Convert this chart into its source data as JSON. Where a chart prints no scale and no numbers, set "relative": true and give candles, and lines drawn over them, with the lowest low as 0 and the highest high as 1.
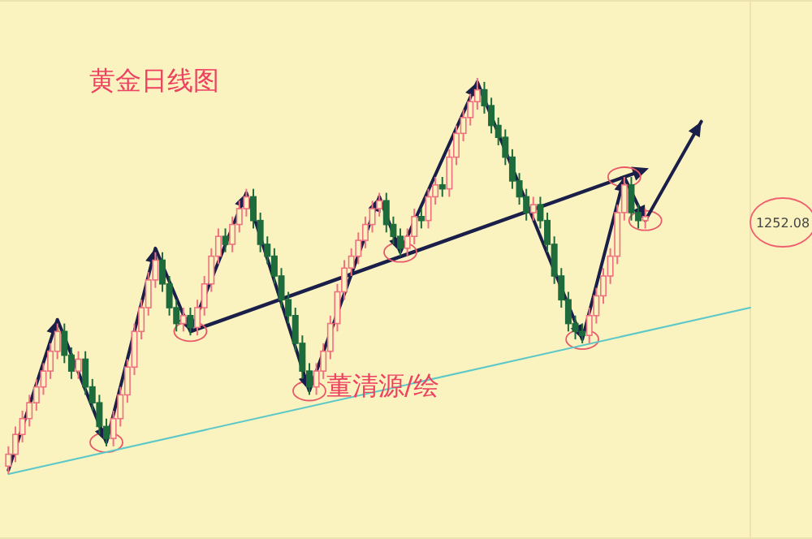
{
  "chart_data": {
    "type": "candlestick",
    "title": "黄金日线图",
    "relative": true,
    "categories": [
      null,
      null,
      null,
      null,
      null,
      null,
      null,
      null,
      null,
      null,
      null,
      null,
      null,
      null,
      null,
      null,
      null,
      null,
      null,
      null,
      null,
      null,
      null,
      null,
      null,
      null,
      null,
      null,
      null,
      null,
      null,
      null,
      null,
      null,
      null,
      null,
      null,
      null,
      null,
      null,
      null,
      null,
      null,
      null,
      null,
      null,
      null,
      null,
      null,
      null,
      null,
      null,
      null,
      null,
      null,
      null,
      null,
      null,
      null,
      null,
      null,
      null,
      null,
      null,
      null,
      null,
      null,
      null,
      null,
      null,
      null,
      null,
      null,
      null,
      null,
      null,
      null,
      null,
      null,
      null,
      null,
      null,
      null,
      null,
      null,
      null,
      null,
      null,
      null,
      null,
      null,
      null,
      null,
      null,
      null,
      null,
      null,
      null,
      null,
      null,
      null,
      null,
      null,
      null,
      null,
      null,
      null
    ],
    "ohlc": [
      [
        0.02,
        0.07,
        0.0,
        0.05
      ],
      [
        0.05,
        0.12,
        0.03,
        0.1
      ],
      [
        0.1,
        0.16,
        0.08,
        0.14
      ],
      [
        0.14,
        0.2,
        0.12,
        0.18
      ],
      [
        0.18,
        0.24,
        0.16,
        0.22
      ],
      [
        0.22,
        0.28,
        0.2,
        0.26
      ],
      [
        0.26,
        0.33,
        0.24,
        0.31
      ],
      [
        0.31,
        0.38,
        0.29,
        0.36
      ],
      [
        0.36,
        0.38,
        0.28,
        0.3
      ],
      [
        0.3,
        0.32,
        0.24,
        0.26
      ],
      [
        0.26,
        0.31,
        0.24,
        0.29
      ],
      [
        0.29,
        0.31,
        0.2,
        0.22
      ],
      [
        0.22,
        0.24,
        0.16,
        0.18
      ],
      [
        0.18,
        0.2,
        0.1,
        0.12
      ],
      [
        0.12,
        0.14,
        0.07,
        0.09
      ],
      [
        0.09,
        0.16,
        0.07,
        0.14
      ],
      [
        0.14,
        0.22,
        0.12,
        0.2
      ],
      [
        0.2,
        0.29,
        0.18,
        0.27
      ],
      [
        0.27,
        0.38,
        0.25,
        0.36
      ],
      [
        0.36,
        0.44,
        0.34,
        0.42
      ],
      [
        0.42,
        0.51,
        0.4,
        0.49
      ],
      [
        0.49,
        0.56,
        0.47,
        0.54
      ],
      [
        0.54,
        0.56,
        0.46,
        0.48
      ],
      [
        0.48,
        0.5,
        0.4,
        0.42
      ],
      [
        0.42,
        0.44,
        0.36,
        0.38
      ],
      [
        0.38,
        0.42,
        0.36,
        0.4
      ],
      [
        0.4,
        0.42,
        0.35,
        0.37
      ],
      [
        0.37,
        0.44,
        0.35,
        0.42
      ],
      [
        0.42,
        0.5,
        0.4,
        0.48
      ],
      [
        0.48,
        0.57,
        0.46,
        0.55
      ],
      [
        0.55,
        0.62,
        0.53,
        0.6
      ],
      [
        0.6,
        0.62,
        0.56,
        0.58
      ],
      [
        0.58,
        0.65,
        0.56,
        0.63
      ],
      [
        0.63,
        0.69,
        0.61,
        0.67
      ],
      [
        0.67,
        0.72,
        0.65,
        0.7
      ],
      [
        0.7,
        0.72,
        0.62,
        0.64
      ],
      [
        0.64,
        0.66,
        0.56,
        0.58
      ],
      [
        0.58,
        0.6,
        0.53,
        0.55
      ],
      [
        0.55,
        0.57,
        0.48,
        0.5
      ],
      [
        0.5,
        0.52,
        0.42,
        0.44
      ],
      [
        0.44,
        0.46,
        0.38,
        0.4
      ],
      [
        0.4,
        0.42,
        0.31,
        0.33
      ],
      [
        0.33,
        0.35,
        0.24,
        0.26
      ],
      [
        0.26,
        0.28,
        0.2,
        0.22
      ],
      [
        0.22,
        0.28,
        0.2,
        0.26
      ],
      [
        0.26,
        0.33,
        0.24,
        0.31
      ],
      [
        0.31,
        0.4,
        0.29,
        0.38
      ],
      [
        0.38,
        0.48,
        0.36,
        0.46
      ],
      [
        0.46,
        0.54,
        0.44,
        0.52
      ],
      [
        0.52,
        0.57,
        0.5,
        0.55
      ],
      [
        0.55,
        0.61,
        0.53,
        0.59
      ],
      [
        0.59,
        0.65,
        0.57,
        0.63
      ],
      [
        0.63,
        0.69,
        0.61,
        0.67
      ],
      [
        0.67,
        0.71,
        0.65,
        0.69
      ],
      [
        0.69,
        0.71,
        0.61,
        0.63
      ],
      [
        0.63,
        0.65,
        0.58,
        0.6
      ],
      [
        0.6,
        0.62,
        0.55,
        0.57
      ],
      [
        0.57,
        0.62,
        0.55,
        0.6
      ],
      [
        0.6,
        0.67,
        0.58,
        0.65
      ],
      [
        0.65,
        0.67,
        0.62,
        0.64
      ],
      [
        0.64,
        0.72,
        0.62,
        0.7
      ],
      [
        0.7,
        0.75,
        0.68,
        0.73
      ],
      [
        0.73,
        0.75,
        0.7,
        0.72
      ],
      [
        0.72,
        0.82,
        0.7,
        0.8
      ],
      [
        0.8,
        0.88,
        0.78,
        0.86
      ],
      [
        0.86,
        0.92,
        0.84,
        0.9
      ],
      [
        0.9,
        0.96,
        0.88,
        0.94
      ],
      [
        0.94,
        1.0,
        0.92,
        0.97
      ],
      [
        0.97,
        0.99,
        0.91,
        0.93
      ],
      [
        0.93,
        0.95,
        0.86,
        0.88
      ],
      [
        0.88,
        0.9,
        0.83,
        0.85
      ],
      [
        0.85,
        0.87,
        0.78,
        0.8
      ],
      [
        0.8,
        0.82,
        0.72,
        0.74
      ],
      [
        0.74,
        0.76,
        0.68,
        0.7
      ],
      [
        0.7,
        0.72,
        0.64,
        0.66
      ],
      [
        0.66,
        0.7,
        0.64,
        0.68
      ],
      [
        0.68,
        0.7,
        0.62,
        0.64
      ],
      [
        0.64,
        0.66,
        0.56,
        0.58
      ],
      [
        0.58,
        0.6,
        0.48,
        0.5
      ],
      [
        0.5,
        0.52,
        0.42,
        0.44
      ],
      [
        0.44,
        0.46,
        0.36,
        0.38
      ],
      [
        0.38,
        0.4,
        0.34,
        0.36
      ],
      [
        0.36,
        0.38,
        0.33,
        0.35
      ],
      [
        0.35,
        0.42,
        0.33,
        0.4
      ],
      [
        0.4,
        0.47,
        0.38,
        0.45
      ],
      [
        0.45,
        0.52,
        0.43,
        0.5
      ],
      [
        0.5,
        0.57,
        0.48,
        0.55
      ],
      [
        0.55,
        0.68,
        0.53,
        0.66
      ],
      [
        0.66,
        0.75,
        0.64,
        0.73
      ],
      [
        0.73,
        0.75,
        0.64,
        0.66
      ],
      [
        0.66,
        0.68,
        0.62,
        0.64
      ],
      [
        0.64,
        0.67,
        0.62,
        0.65
      ],
      null,
      null,
      null,
      null,
      null,
      null,
      null,
      null,
      null,
      null,
      null,
      null,
      null,
      null,
      null
    ],
    "series": [
      {
        "type": "line",
        "color": "#1a1f4a",
        "values": [
          0.01,
          null,
          null,
          null,
          null,
          null,
          null,
          0.39,
          null,
          null,
          null,
          null,
          null,
          null,
          0.08,
          null,
          null,
          null,
          null,
          null,
          null,
          0.57,
          null,
          null,
          null,
          null,
          0.36,
          null,
          null,
          null,
          null,
          null,
          null,
          null,
          0.71,
          null,
          null,
          null,
          null,
          null,
          null,
          null,
          null,
          0.21,
          null,
          null,
          null,
          null,
          null,
          null,
          null,
          null,
          null,
          0.7,
          null,
          null,
          0.56,
          null,
          null,
          null,
          null,
          null,
          null,
          null,
          null,
          null,
          null,
          0.99,
          null,
          null,
          null,
          null,
          null,
          null,
          null,
          null,
          null,
          null,
          null,
          null,
          null,
          null,
          0.34,
          null,
          null,
          null,
          null,
          null,
          0.75,
          null,
          null,
          0.64,
          null,
          null,
          null,
          null,
          null,
          null,
          null,
          0.89,
          null,
          null,
          null,
          null,
          null,
          null,
          null
        ]
      },
      {
        "type": "line",
        "color": "#5cc8c8",
        "values": [
          0.0,
          null,
          null,
          null,
          null,
          null,
          null,
          null,
          null,
          null,
          null,
          null,
          null,
          null,
          null,
          null,
          null,
          null,
          null,
          null,
          null,
          null,
          null,
          null,
          null,
          null,
          null,
          null,
          null,
          null,
          null,
          null,
          null,
          null,
          null,
          null,
          null,
          null,
          null,
          null,
          null,
          null,
          null,
          null,
          null,
          null,
          null,
          null,
          null,
          null,
          null,
          null,
          null,
          null,
          null,
          null,
          null,
          null,
          null,
          null,
          null,
          null,
          null,
          null,
          null,
          null,
          null,
          null,
          null,
          null,
          null,
          null,
          null,
          null,
          null,
          null,
          null,
          null,
          null,
          null,
          null,
          null,
          null,
          null,
          null,
          null,
          null,
          null,
          null,
          null,
          null,
          null,
          null,
          null,
          null,
          null,
          null,
          null,
          null,
          null,
          null,
          null,
          null,
          null,
          null,
          null,
          0.42
        ]
      }
    ],
    "annotations": [
      "董清源/绘",
      "1252.08"
    ]
  }
}
